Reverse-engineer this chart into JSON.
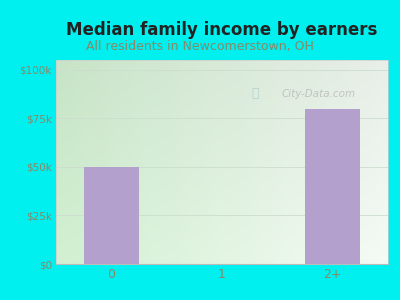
{
  "title": "Median family income by earners",
  "subtitle": "All residents in Newcomerstown, OH",
  "categories": [
    "0",
    "1",
    "2+"
  ],
  "values": [
    50000,
    0,
    80000
  ],
  "bar_color": "#b3a0cc",
  "title_color": "#222222",
  "subtitle_color": "#888866",
  "axis_label_color": "#888866",
  "yticks": [
    0,
    25000,
    50000,
    75000,
    100000
  ],
  "ytick_labels": [
    "$0",
    "$25k",
    "$50k",
    "$75k",
    "$100k"
  ],
  "ylim": [
    0,
    105000
  ],
  "bg_color": "#00f0f0",
  "plot_bg_color_tl": "#d8f0d8",
  "plot_bg_color_tr": "#f5fbf5",
  "plot_bg_color_bl": "#d8f0d8",
  "plot_bg_color_br": "#ffffff",
  "watermark": "City-Data.com",
  "title_fontsize": 12,
  "subtitle_fontsize": 9,
  "bar_width": 0.5
}
